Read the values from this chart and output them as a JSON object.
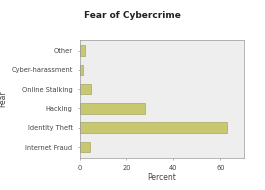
{
  "title": "Fear of Cybercrime",
  "categories": [
    "Internet Fraud",
    "Identity Theft",
    "Hacking",
    "Online Stalking",
    "Cyber-harassment",
    "Other"
  ],
  "values": [
    4.5,
    63.0,
    28.0,
    5.0,
    1.5,
    2.5
  ],
  "bar_color": "#c8c870",
  "bar_edgecolor": "#999955",
  "xlabel": "Percent",
  "ylabel": "Fear",
  "xlim": [
    0,
    70
  ],
  "xticks": [
    0,
    20,
    40,
    60
  ],
  "background_color": "#eeeeee",
  "outer_bg": "#ffffff",
  "title_fontsize": 6.5,
  "axis_label_fontsize": 5.5,
  "tick_fontsize": 4.8
}
